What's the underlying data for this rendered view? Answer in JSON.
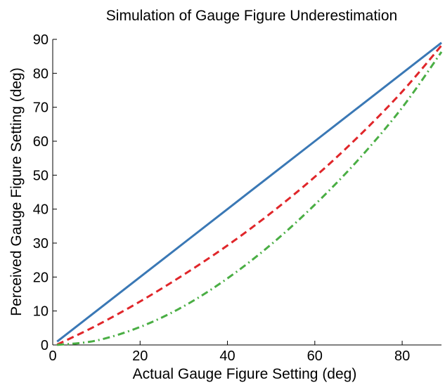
{
  "chart_data": {
    "type": "line",
    "title": "Simulation of Gauge Figure Underestimation",
    "xlabel": "Actual Gauge Figure Setting (deg)",
    "ylabel": "Perceived Gauge Figure Setting (deg)",
    "xlim": [
      0,
      89
    ],
    "ylim": [
      0,
      90
    ],
    "xticks": [
      0,
      20,
      40,
      60,
      80
    ],
    "yticks": [
      0,
      10,
      20,
      30,
      40,
      50,
      60,
      70,
      80,
      90
    ],
    "grid": false,
    "series": [
      {
        "color": "#3a78b5",
        "style": "solid",
        "x": [
          1,
          10,
          20,
          30,
          40,
          50,
          60,
          70,
          80,
          89
        ],
        "y": [
          1,
          10,
          20,
          30,
          40,
          50,
          60,
          70,
          80,
          89
        ]
      },
      {
        "color": "#e0262a",
        "style": "dashed",
        "x": [
          1,
          10,
          20,
          30,
          40,
          50,
          60,
          70,
          80,
          89
        ],
        "y": [
          0.1,
          5.7,
          12.8,
          20.7,
          29.3,
          38.9,
          49.5,
          61.4,
          74.6,
          88.2
        ]
      },
      {
        "color": "#4aae44",
        "style": "dashdot",
        "x": [
          1,
          10,
          20,
          30,
          40,
          50,
          60,
          70,
          80,
          89
        ],
        "y": [
          0,
          1.3,
          5.3,
          11.4,
          19.6,
          29.6,
          41.3,
          54.6,
          69.9,
          86.3
        ]
      }
    ]
  }
}
